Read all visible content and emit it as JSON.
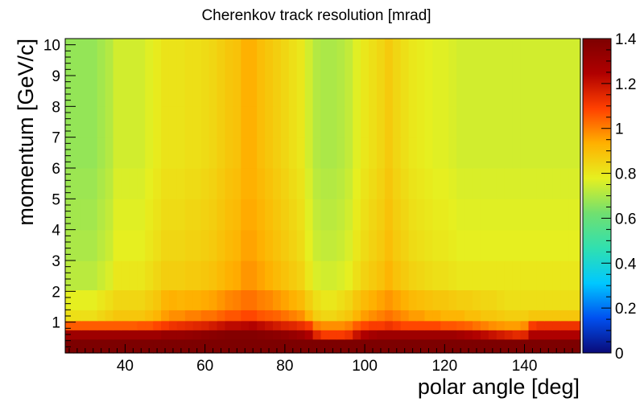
{
  "chart_data": {
    "type": "heatmap",
    "title": "Cherenkov track resolution [mrad]",
    "xlabel": "polar angle [deg]",
    "ylabel": "momentum [GeV/c]",
    "xlim": [
      25,
      154
    ],
    "ylim": [
      0,
      10.2
    ],
    "x_ticks": [
      40,
      60,
      80,
      100,
      120,
      140
    ],
    "x_tick_labels": [
      "40",
      "60",
      "80",
      "100",
      "120",
      "140"
    ],
    "y_ticks": [
      1,
      2,
      3,
      4,
      5,
      6,
      7,
      8,
      9,
      10
    ],
    "y_tick_labels": [
      "1",
      "2",
      "3",
      "4",
      "5",
      "6",
      "7",
      "8",
      "9",
      "10"
    ],
    "colorbar": {
      "min": 0,
      "max": 1.4,
      "ticks": [
        0,
        0.2,
        0.4,
        0.6,
        0.8,
        1,
        1.2,
        1.4
      ],
      "tick_labels": [
        "0",
        "0.2",
        "0.4",
        "0.6",
        "0.8",
        "1",
        "1.2",
        "1.4"
      ],
      "colormap": "rainbow",
      "colors": [
        "#0a0a78",
        "#0050f0",
        "#00c8ff",
        "#30e0b0",
        "#70e070",
        "#e6f020",
        "#ffb000",
        "#ff4000",
        "#b00000",
        "#7d0000"
      ]
    },
    "x_centers": [
      26,
      28,
      30,
      32,
      34,
      36,
      38,
      40,
      42,
      44,
      46,
      48,
      50,
      52,
      54,
      56,
      58,
      60,
      62,
      64,
      66,
      68,
      70,
      72,
      74,
      76,
      78,
      80,
      82,
      84,
      86,
      88,
      90,
      92,
      94,
      96,
      98,
      100,
      102,
      104,
      106,
      108,
      110,
      112,
      114,
      116,
      118,
      120,
      122,
      124,
      126,
      128,
      130,
      132,
      134,
      136,
      138,
      140,
      142,
      144,
      146,
      148,
      150,
      152
    ],
    "y_centers": [
      0.3,
      0.6,
      0.9,
      1.2,
      1.6,
      2.5,
      3.5,
      4.5,
      5.5,
      6.5,
      7.5,
      8.5,
      9.5
    ],
    "values": [
      [
        1.4,
        1.4,
        1.4,
        1.4,
        1.4,
        1.4,
        1.4,
        1.4,
        1.4,
        1.4,
        1.4,
        1.4,
        1.4,
        1.4,
        1.4,
        1.4,
        1.4,
        1.4,
        1.4,
        1.4,
        1.4,
        1.4,
        1.4,
        1.4,
        1.4,
        1.4,
        1.4,
        1.4,
        1.4,
        1.4,
        1.4,
        1.4,
        1.4,
        1.4,
        1.4,
        1.4,
        1.4,
        1.4,
        1.4,
        1.4,
        1.4,
        1.4,
        1.4,
        1.4,
        1.4,
        1.4,
        1.4,
        1.4,
        1.4,
        1.4,
        1.4,
        1.4,
        1.4,
        1.4,
        1.4,
        1.4,
        1.4,
        1.4,
        1.4,
        1.4,
        1.4,
        1.4,
        1.4,
        1.4
      ],
      [
        1.3,
        1.3,
        1.3,
        1.3,
        1.3,
        1.3,
        1.3,
        1.3,
        1.3,
        1.3,
        1.3,
        1.3,
        1.32,
        1.32,
        1.32,
        1.33,
        1.34,
        1.35,
        1.36,
        1.37,
        1.38,
        1.38,
        1.38,
        1.38,
        1.37,
        1.36,
        1.35,
        1.34,
        1.32,
        1.3,
        1.25,
        1.15,
        1.1,
        1.1,
        1.1,
        1.12,
        1.2,
        1.25,
        1.28,
        1.3,
        1.3,
        1.3,
        1.3,
        1.3,
        1.3,
        1.3,
        1.3,
        1.3,
        1.3,
        1.28,
        1.26,
        1.24,
        1.22,
        1.2,
        1.18,
        1.16,
        1.14,
        1.15,
        1.25,
        1.25,
        1.25,
        1.25,
        1.25,
        1.25
      ],
      [
        1.05,
        1.05,
        1.05,
        1.05,
        1.05,
        1.05,
        1.05,
        1.05,
        1.05,
        1.06,
        1.06,
        1.08,
        1.1,
        1.12,
        1.13,
        1.14,
        1.15,
        1.16,
        1.18,
        1.2,
        1.22,
        1.22,
        1.23,
        1.24,
        1.22,
        1.2,
        1.18,
        1.16,
        1.15,
        1.13,
        1.1,
        1.0,
        0.98,
        0.98,
        0.98,
        1.0,
        1.05,
        1.08,
        1.1,
        1.1,
        1.12,
        1.1,
        1.08,
        1.08,
        1.08,
        1.08,
        1.08,
        1.06,
        1.06,
        1.05,
        1.04,
        1.02,
        1.0,
        0.98,
        0.97,
        0.96,
        0.96,
        0.98,
        1.1,
        1.12,
        1.12,
        1.12,
        1.12,
        1.12
      ],
      [
        0.82,
        0.82,
        0.82,
        0.82,
        0.84,
        0.86,
        0.88,
        0.88,
        0.88,
        0.88,
        0.9,
        0.92,
        0.96,
        0.98,
        0.98,
        1.0,
        1.0,
        1.02,
        1.02,
        1.04,
        1.06,
        1.06,
        1.08,
        1.08,
        1.06,
        1.05,
        1.04,
        1.02,
        1.0,
        0.98,
        0.92,
        0.86,
        0.84,
        0.84,
        0.86,
        0.88,
        0.92,
        0.96,
        0.98,
        1.0,
        1.02,
        1.0,
        0.98,
        0.96,
        0.96,
        0.94,
        0.94,
        0.92,
        0.92,
        0.92,
        0.9,
        0.9,
        0.88,
        0.88,
        0.87,
        0.86,
        0.86,
        0.86,
        0.88,
        0.88,
        0.88,
        0.88,
        0.88,
        0.88
      ],
      [
        0.78,
        0.78,
        0.78,
        0.78,
        0.8,
        0.82,
        0.84,
        0.84,
        0.84,
        0.84,
        0.86,
        0.88,
        0.92,
        0.93,
        0.92,
        0.93,
        0.93,
        0.94,
        0.95,
        0.97,
        0.99,
        1.0,
        1.02,
        1.02,
        1.0,
        0.99,
        0.97,
        0.95,
        0.93,
        0.91,
        0.86,
        0.82,
        0.8,
        0.8,
        0.82,
        0.84,
        0.88,
        0.91,
        0.93,
        0.95,
        0.97,
        0.95,
        0.93,
        0.91,
        0.9,
        0.89,
        0.88,
        0.88,
        0.87,
        0.86,
        0.86,
        0.85,
        0.84,
        0.84,
        0.83,
        0.82,
        0.82,
        0.82,
        0.82,
        0.82,
        0.82,
        0.82,
        0.82,
        0.82
      ],
      [
        0.72,
        0.72,
        0.72,
        0.72,
        0.74,
        0.76,
        0.8,
        0.8,
        0.8,
        0.8,
        0.82,
        0.84,
        0.86,
        0.86,
        0.86,
        0.87,
        0.87,
        0.88,
        0.89,
        0.91,
        0.93,
        0.94,
        0.97,
        0.97,
        0.95,
        0.93,
        0.91,
        0.89,
        0.87,
        0.85,
        0.8,
        0.76,
        0.75,
        0.75,
        0.76,
        0.78,
        0.82,
        0.85,
        0.87,
        0.89,
        0.92,
        0.89,
        0.87,
        0.85,
        0.84,
        0.83,
        0.82,
        0.82,
        0.81,
        0.8,
        0.8,
        0.8,
        0.8,
        0.8,
        0.8,
        0.8,
        0.8,
        0.8,
        0.8,
        0.8,
        0.8,
        0.8,
        0.8,
        0.8
      ],
      [
        0.7,
        0.7,
        0.7,
        0.7,
        0.72,
        0.74,
        0.78,
        0.78,
        0.78,
        0.78,
        0.8,
        0.82,
        0.84,
        0.84,
        0.84,
        0.85,
        0.85,
        0.86,
        0.87,
        0.89,
        0.91,
        0.92,
        0.95,
        0.95,
        0.93,
        0.91,
        0.89,
        0.87,
        0.85,
        0.83,
        0.78,
        0.74,
        0.73,
        0.73,
        0.74,
        0.76,
        0.8,
        0.83,
        0.85,
        0.87,
        0.9,
        0.87,
        0.85,
        0.83,
        0.82,
        0.81,
        0.8,
        0.8,
        0.79,
        0.78,
        0.78,
        0.78,
        0.78,
        0.78,
        0.78,
        0.78,
        0.78,
        0.78,
        0.78,
        0.78,
        0.78,
        0.78,
        0.78,
        0.78
      ],
      [
        0.69,
        0.69,
        0.69,
        0.69,
        0.71,
        0.73,
        0.77,
        0.77,
        0.77,
        0.77,
        0.79,
        0.81,
        0.83,
        0.83,
        0.83,
        0.84,
        0.84,
        0.85,
        0.86,
        0.88,
        0.9,
        0.91,
        0.94,
        0.94,
        0.92,
        0.9,
        0.88,
        0.86,
        0.84,
        0.82,
        0.77,
        0.73,
        0.72,
        0.72,
        0.73,
        0.75,
        0.79,
        0.82,
        0.84,
        0.86,
        0.89,
        0.86,
        0.84,
        0.82,
        0.81,
        0.8,
        0.79,
        0.79,
        0.78,
        0.77,
        0.77,
        0.77,
        0.77,
        0.77,
        0.77,
        0.77,
        0.77,
        0.77,
        0.77,
        0.77,
        0.77,
        0.77,
        0.77,
        0.77
      ],
      [
        0.68,
        0.68,
        0.68,
        0.68,
        0.7,
        0.72,
        0.76,
        0.76,
        0.76,
        0.76,
        0.78,
        0.8,
        0.82,
        0.82,
        0.82,
        0.83,
        0.83,
        0.84,
        0.85,
        0.87,
        0.89,
        0.9,
        0.93,
        0.93,
        0.91,
        0.89,
        0.87,
        0.85,
        0.83,
        0.81,
        0.76,
        0.72,
        0.71,
        0.71,
        0.72,
        0.74,
        0.78,
        0.81,
        0.83,
        0.85,
        0.88,
        0.85,
        0.83,
        0.81,
        0.8,
        0.79,
        0.78,
        0.78,
        0.77,
        0.76,
        0.76,
        0.76,
        0.76,
        0.76,
        0.76,
        0.76,
        0.76,
        0.76,
        0.76,
        0.76,
        0.76,
        0.76,
        0.76,
        0.76
      ],
      [
        0.67,
        0.67,
        0.67,
        0.67,
        0.69,
        0.71,
        0.75,
        0.75,
        0.75,
        0.75,
        0.77,
        0.79,
        0.81,
        0.81,
        0.81,
        0.82,
        0.82,
        0.83,
        0.84,
        0.86,
        0.88,
        0.89,
        0.93,
        0.93,
        0.9,
        0.88,
        0.86,
        0.84,
        0.82,
        0.8,
        0.75,
        0.71,
        0.7,
        0.7,
        0.71,
        0.73,
        0.77,
        0.8,
        0.82,
        0.84,
        0.87,
        0.84,
        0.82,
        0.8,
        0.79,
        0.78,
        0.77,
        0.77,
        0.76,
        0.75,
        0.75,
        0.75,
        0.75,
        0.75,
        0.75,
        0.75,
        0.75,
        0.75,
        0.75,
        0.75,
        0.75,
        0.75,
        0.75,
        0.75
      ],
      [
        0.67,
        0.67,
        0.67,
        0.67,
        0.69,
        0.71,
        0.75,
        0.75,
        0.75,
        0.75,
        0.77,
        0.79,
        0.81,
        0.81,
        0.81,
        0.82,
        0.82,
        0.83,
        0.84,
        0.86,
        0.88,
        0.89,
        0.93,
        0.93,
        0.9,
        0.88,
        0.86,
        0.84,
        0.82,
        0.8,
        0.75,
        0.71,
        0.7,
        0.7,
        0.71,
        0.73,
        0.77,
        0.8,
        0.82,
        0.84,
        0.87,
        0.84,
        0.82,
        0.8,
        0.79,
        0.78,
        0.77,
        0.77,
        0.76,
        0.75,
        0.75,
        0.75,
        0.75,
        0.75,
        0.75,
        0.75,
        0.75,
        0.75,
        0.75,
        0.75,
        0.75,
        0.75,
        0.75,
        0.75
      ],
      [
        0.67,
        0.67,
        0.67,
        0.67,
        0.69,
        0.71,
        0.75,
        0.75,
        0.75,
        0.75,
        0.77,
        0.79,
        0.81,
        0.81,
        0.81,
        0.82,
        0.82,
        0.83,
        0.84,
        0.86,
        0.88,
        0.89,
        0.93,
        0.93,
        0.9,
        0.88,
        0.86,
        0.84,
        0.82,
        0.8,
        0.75,
        0.71,
        0.7,
        0.7,
        0.71,
        0.73,
        0.77,
        0.8,
        0.82,
        0.84,
        0.87,
        0.84,
        0.82,
        0.8,
        0.79,
        0.78,
        0.77,
        0.77,
        0.76,
        0.75,
        0.75,
        0.75,
        0.75,
        0.75,
        0.75,
        0.75,
        0.75,
        0.75,
        0.75,
        0.75,
        0.75,
        0.75,
        0.75,
        0.75
      ],
      [
        0.67,
        0.67,
        0.67,
        0.67,
        0.69,
        0.71,
        0.75,
        0.75,
        0.75,
        0.75,
        0.77,
        0.79,
        0.81,
        0.81,
        0.81,
        0.82,
        0.82,
        0.83,
        0.84,
        0.86,
        0.88,
        0.89,
        0.93,
        0.93,
        0.9,
        0.88,
        0.86,
        0.84,
        0.82,
        0.8,
        0.75,
        0.71,
        0.7,
        0.7,
        0.71,
        0.73,
        0.77,
        0.8,
        0.82,
        0.84,
        0.87,
        0.84,
        0.82,
        0.8,
        0.79,
        0.78,
        0.77,
        0.77,
        0.76,
        0.75,
        0.75,
        0.75,
        0.75,
        0.75,
        0.75,
        0.75,
        0.75,
        0.75,
        0.75,
        0.75,
        0.75,
        0.75,
        0.75,
        0.75
      ]
    ]
  }
}
